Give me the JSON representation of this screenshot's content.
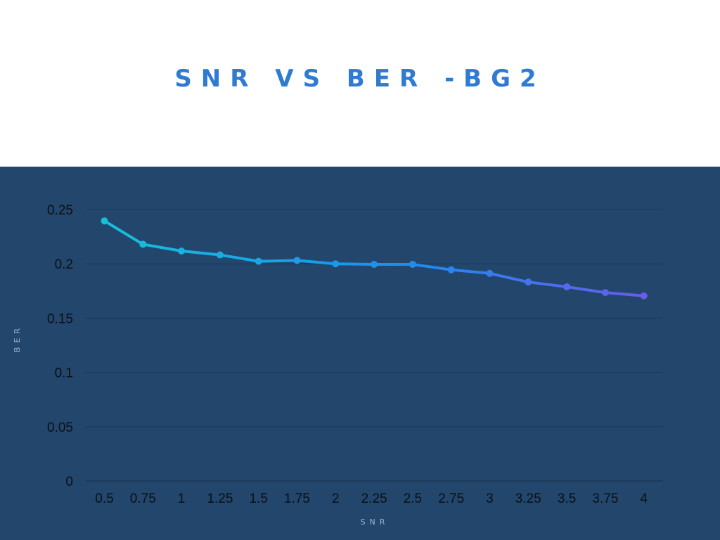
{
  "chart_data": {
    "type": "line",
    "title": "SNR VS BER -BG2",
    "xlabel": "SNR",
    "ylabel": "BER",
    "categories": [
      "0.5",
      "0.75",
      "1",
      "1.25",
      "1.5",
      "1.75",
      "2",
      "2.25",
      "2.5",
      "2.75",
      "3",
      "3.25",
      "3.5",
      "3.75",
      "4"
    ],
    "series": [
      {
        "values": [
          0.2395,
          0.218,
          0.2118,
          0.2082,
          0.2023,
          0.2031,
          0.2,
          0.1995,
          0.1995,
          0.1945,
          0.1912,
          0.1832,
          0.1788,
          0.1735,
          0.1705
        ]
      }
    ],
    "ylim": [
      0,
      0.25
    ],
    "yticks": [
      "0",
      "0.05",
      "0.1",
      "0.15",
      "0.2",
      "0.25"
    ],
    "ytick_values": [
      0,
      0.05,
      0.1,
      0.15,
      0.2,
      0.25
    ],
    "grid": true,
    "colors": {
      "line_start": "#17c0d8",
      "line_mid": "#1a8ef0",
      "line_end": "#6a5be8",
      "title": "#2f7bd2",
      "panel": "#22466c",
      "grid": "#1b3a5c"
    }
  }
}
